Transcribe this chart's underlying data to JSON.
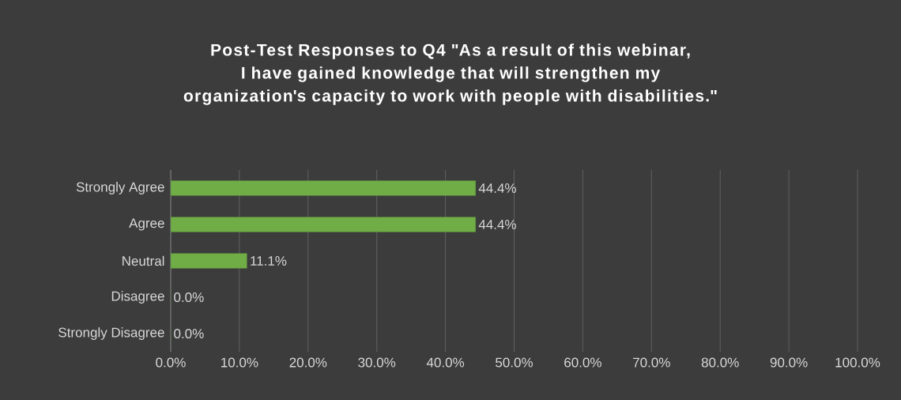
{
  "chart_data": {
    "type": "bar",
    "orientation": "horizontal",
    "title": "Post-Test Responses to Q4  \"As a result of this webinar, I have gained knowledge that will strengthen my organization's capacity to work with people with disabilities.\"",
    "categories": [
      "Strongly Agree",
      "Agree",
      "Neutral",
      "Disagree",
      "Strongly Disagree"
    ],
    "values": [
      44.4,
      44.4,
      11.1,
      0.0,
      0.0
    ],
    "value_labels": [
      "44.4%",
      "44.4%",
      "11.1%",
      "0.0%",
      "0.0%"
    ],
    "color": "#70ad47",
    "xlim": [
      0,
      100
    ],
    "xticks": [
      {
        "value": 0,
        "label": "0.0%"
      },
      {
        "value": 10,
        "label": "10.0%"
      },
      {
        "value": 20,
        "label": "20.0%"
      },
      {
        "value": 30,
        "label": "30.0%"
      },
      {
        "value": 40,
        "label": "40.0%"
      },
      {
        "value": 50,
        "label": "50.0%"
      },
      {
        "value": 60,
        "label": "60.0%"
      },
      {
        "value": 70,
        "label": "70.0%"
      },
      {
        "value": 80,
        "label": "80.0%"
      },
      {
        "value": 90,
        "label": "90.0%"
      },
      {
        "value": 100,
        "label": "100.0%"
      }
    ],
    "grid": "x"
  }
}
